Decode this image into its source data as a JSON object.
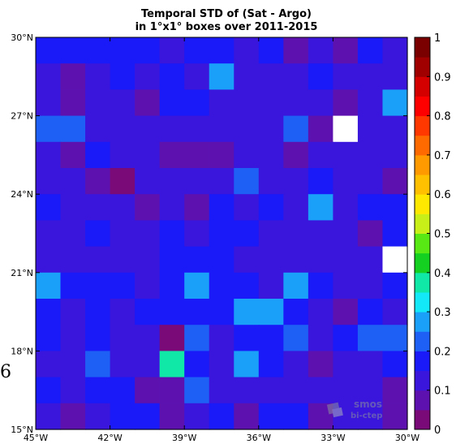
{
  "chart_data": {
    "type": "heatmap",
    "title": "Temporal STD of (Sat - Argo)",
    "subtitle": "in 1°x1° boxes over 2011-2015",
    "x_ticks": [
      "45°W",
      "42°W",
      "39°W",
      "36°W",
      "33°W",
      "30°W"
    ],
    "y_ticks": [
      "30°N",
      "27°N",
      "24°N",
      "21°N",
      "18°N",
      "15°N"
    ],
    "x_range": [
      -45,
      -30
    ],
    "y_range": [
      15,
      30
    ],
    "cell_size_deg": 1,
    "colorbar": {
      "ticks": [
        "1",
        "0.9",
        "0.8",
        "0.7",
        "0.6",
        "0.5",
        "0.4",
        "0.3",
        "0.2",
        "0.1",
        "0"
      ],
      "range": [
        0,
        1
      ],
      "colors": [
        "#7a0a78",
        "#5d12b0",
        "#3a16dc",
        "#1a1af8",
        "#1e60f5",
        "#1aa0f8",
        "#12e8f8",
        "#10e8a8",
        "#14d020",
        "#58e814",
        "#c8f018",
        "#ffe800",
        "#ffc000",
        "#ff9a00",
        "#ff6a00",
        "#ff3800",
        "#ff0000",
        "#d40000",
        "#a00000",
        "#7a0000"
      ]
    },
    "nodata_note": "white cells = no data",
    "rows_north_to_south": [
      [
        0.18,
        0.18,
        0.18,
        0.18,
        0.18,
        0.13,
        0.18,
        0.18,
        0.11,
        0.18,
        0.08,
        0.12,
        0.05,
        0.18,
        0.12
      ],
      [
        0.1,
        0.06,
        0.1,
        0.18,
        0.12,
        0.15,
        0.1,
        0.25,
        0.12,
        0.1,
        0.12,
        0.15,
        0.12,
        0.12,
        0.12
      ],
      [
        0.1,
        0.06,
        0.1,
        0.1,
        0.07,
        0.18,
        0.18,
        0.11,
        0.12,
        0.12,
        0.1,
        0.12,
        0.06,
        0.12,
        0.25
      ],
      [
        0.2,
        0.2,
        0.12,
        0.12,
        0.12,
        0.12,
        0.12,
        0.12,
        0.12,
        0.12,
        0.22,
        0.05,
        null,
        0.1,
        0.1
      ],
      [
        0.1,
        0.07,
        0.18,
        0.1,
        0.1,
        0.07,
        0.07,
        0.07,
        0.1,
        0.1,
        0.07,
        0.1,
        0.1,
        0.1,
        0.1
      ],
      [
        0.1,
        0.1,
        0.07,
        0.03,
        0.1,
        0.1,
        0.13,
        0.13,
        0.2,
        0.1,
        0.1,
        0.18,
        0.1,
        0.1,
        0.07
      ],
      [
        0.18,
        0.1,
        0.1,
        0.1,
        0.07,
        0.12,
        0.07,
        0.18,
        0.1,
        0.18,
        0.1,
        0.25,
        0.1,
        0.18,
        0.18
      ],
      [
        0.12,
        0.12,
        0.18,
        0.12,
        0.12,
        0.18,
        0.1,
        0.18,
        0.18,
        0.1,
        0.12,
        0.12,
        0.1,
        0.08,
        0.18
      ],
      [
        0.12,
        0.12,
        0.1,
        0.1,
        0.1,
        0.18,
        0.18,
        0.15,
        0.1,
        0.12,
        0.12,
        0.12,
        0.12,
        0.12,
        null
      ],
      [
        0.25,
        0.18,
        0.18,
        0.18,
        0.1,
        0.18,
        0.25,
        0.18,
        0.18,
        0.1,
        0.25,
        0.18,
        0.1,
        0.1,
        0.18
      ],
      [
        0.18,
        0.1,
        0.18,
        0.12,
        0.18,
        0.18,
        0.18,
        0.18,
        0.25,
        0.25,
        0.18,
        0.1,
        0.07,
        0.18,
        0.1
      ],
      [
        0.18,
        0.1,
        0.18,
        0.1,
        0.1,
        0.04,
        0.22,
        0.1,
        0.18,
        0.18,
        0.22,
        0.12,
        0.18,
        0.22,
        0.22
      ],
      [
        0.12,
        0.12,
        0.22,
        0.12,
        0.12,
        0.35,
        0.18,
        0.1,
        0.25,
        0.18,
        0.1,
        0.07,
        0.1,
        0.1,
        0.18
      ],
      [
        0.18,
        0.1,
        0.18,
        0.18,
        0.07,
        0.07,
        0.22,
        0.1,
        0.1,
        0.1,
        0.1,
        0.1,
        0.1,
        0.1,
        0.07
      ],
      [
        0.1,
        0.06,
        0.1,
        0.18,
        0.18,
        0.07,
        0.1,
        0.18,
        0.05,
        0.18,
        0.18,
        0.08,
        0.12,
        0.1,
        0.07
      ]
    ]
  },
  "stray_label": "6",
  "watermark": {
    "line1": "smos",
    "line2": "bi-ctep"
  }
}
